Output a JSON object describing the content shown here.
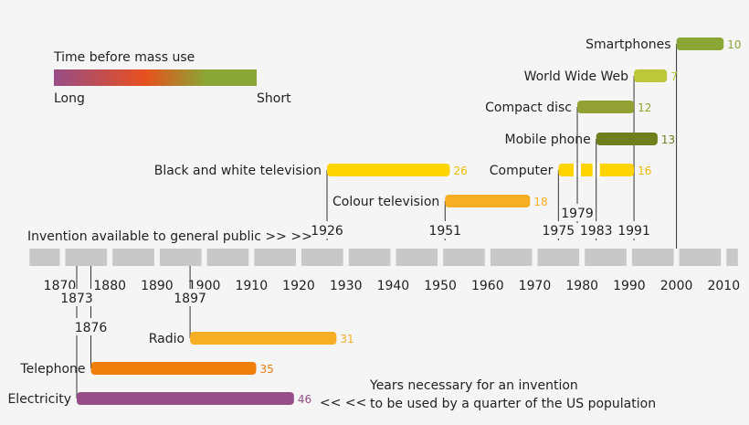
{
  "chart_data": {
    "type": "timeline-bar",
    "legend": {
      "title": "Time before mass use",
      "low_label": "Long",
      "high_label": "Short",
      "gradient": [
        "#974d87",
        "#e8501e",
        "#8aa634"
      ]
    },
    "axis": {
      "ticks": [
        1870,
        1880,
        1890,
        1900,
        1910,
        1920,
        1930,
        1940,
        1950,
        1960,
        1970,
        1980,
        1990,
        2000,
        2010
      ],
      "range": [
        1863,
        2013
      ]
    },
    "invention_caption": "Invention available to general public >>  >>",
    "footnote_arrows": "<<  <<",
    "footnote_line1": "Years necessary for an invention",
    "footnote_line2": "to be used by a quarter of the US population",
    "series": [
      {
        "name": "Smartphones",
        "start": 2000,
        "year_label": "",
        "years": 10,
        "color": "#8aa634"
      },
      {
        "name": "World Wide Web",
        "start": 1991,
        "year_label": "1991",
        "years": 7,
        "color": "#bcc83a"
      },
      {
        "name": "Compact disc",
        "start": 1979,
        "year_label": "1979",
        "years": 12,
        "color": "#93a033"
      },
      {
        "name": "Mobile phone",
        "start": 1983,
        "year_label": "1983",
        "years": 13,
        "color": "#6f7f1e"
      },
      {
        "name": "Computer",
        "start": 1975,
        "year_label": "1975",
        "years": 16,
        "color": "#ffd400"
      },
      {
        "name": "Black and white television",
        "start": 1926,
        "year_label": "1926",
        "years": 26,
        "color": "#ffd400"
      },
      {
        "name": "Colour television",
        "start": 1951,
        "year_label": "1951",
        "years": 18,
        "color": "#f7ae25"
      },
      {
        "name": "Radio",
        "start": 1897,
        "year_label": "1897",
        "years": 31,
        "color": "#f7ae25"
      },
      {
        "name": "Telephone",
        "start": 1876,
        "year_label": "1876",
        "years": 35,
        "color": "#ef7d0a"
      },
      {
        "name": "Electricity",
        "start": 1873,
        "year_label": "1873",
        "years": 46,
        "color": "#974d87"
      }
    ]
  }
}
